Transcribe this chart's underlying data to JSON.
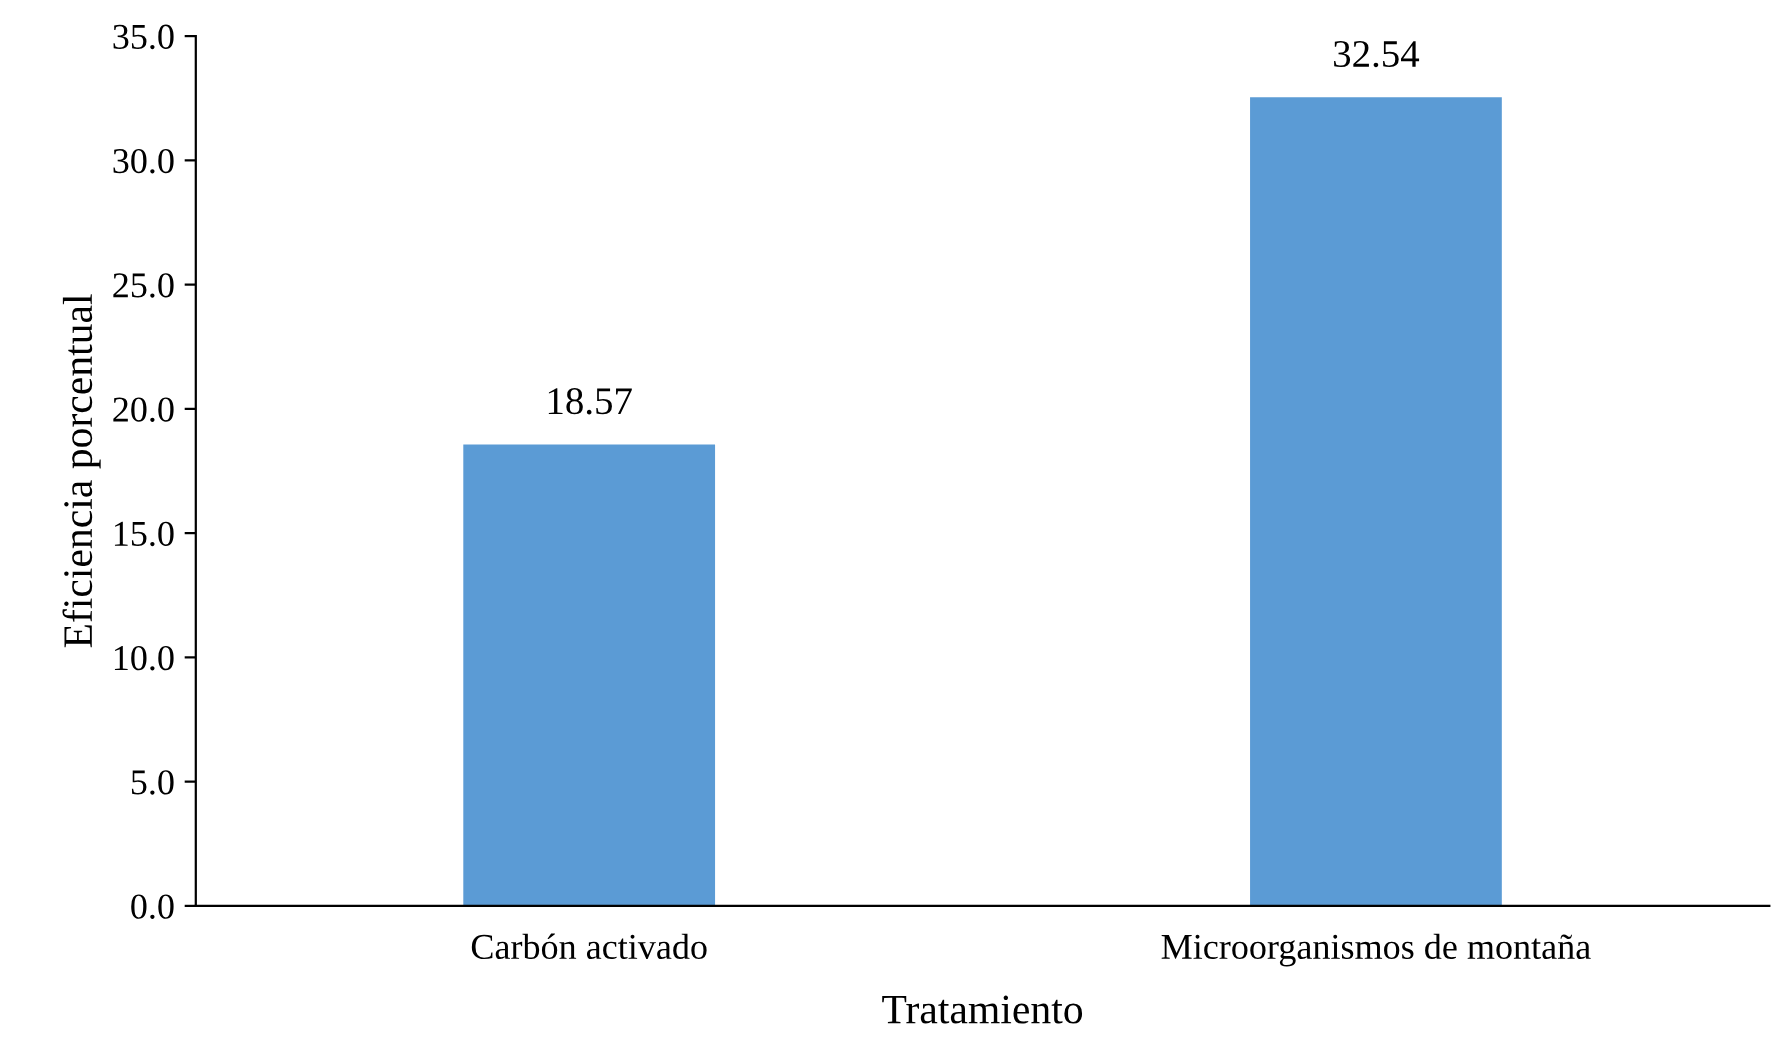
{
  "chart_data": {
    "type": "bar",
    "xlabel": "Tratamiento",
    "ylabel": "Eficiencia porcentual",
    "categories": [
      "Carbón activado",
      "Microorganismos de montaña"
    ],
    "values": [
      18.57,
      32.54
    ],
    "color": "#5b9bd5",
    "ylim": [
      0,
      35
    ],
    "yticks": [
      {
        "value": 0,
        "label": "0.0"
      },
      {
        "value": 5,
        "label": "5.0"
      },
      {
        "value": 10,
        "label": "10.0"
      },
      {
        "value": 15,
        "label": "15.0"
      },
      {
        "value": 20,
        "label": "20.0"
      },
      {
        "value": 25,
        "label": "25.0"
      },
      {
        "value": 30,
        "label": "30.0"
      },
      {
        "value": 35,
        "label": "35.0"
      }
    ],
    "data_labels": true,
    "grid": false,
    "legend": false
  }
}
